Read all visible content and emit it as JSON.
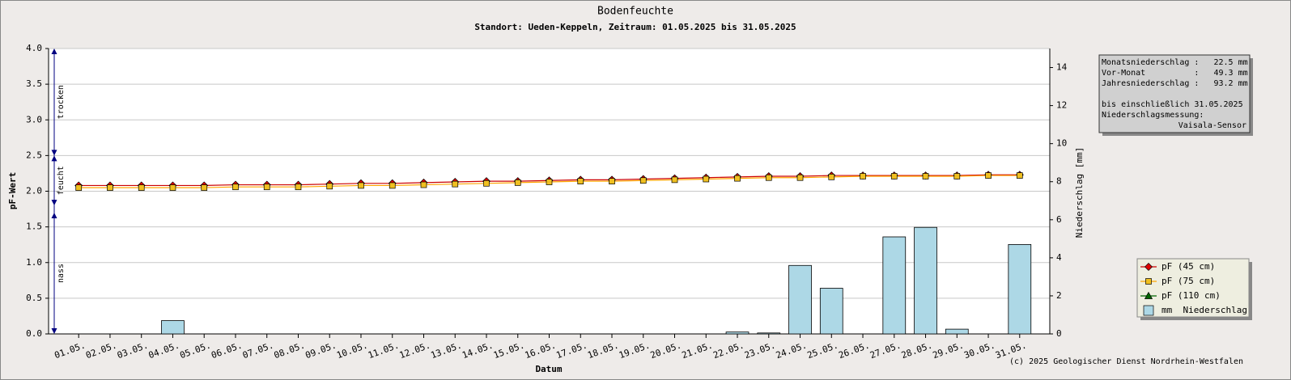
{
  "chart_data": {
    "type": "line_bar",
    "title": "Bodenfeuchte",
    "subtitle": "Standort: Ueden-Keppeln, Zeitraum: 01.05.2025 bis 31.05.2025",
    "xlabel": "Datum",
    "ylabel": "pF-Wert",
    "y2label": "Niederschlag [mm]",
    "categories": [
      "01.05.",
      "02.05.",
      "03.05.",
      "04.05.",
      "05.05.",
      "06.05.",
      "07.05.",
      "08.05.",
      "09.05.",
      "10.05.",
      "11.05.",
      "12.05.",
      "13.05.",
      "14.05.",
      "15.05.",
      "16.05.",
      "17.05.",
      "18.05.",
      "19.05.",
      "20.05.",
      "21.05.",
      "22.05.",
      "23.05.",
      "24.05.",
      "25.05.",
      "26.05.",
      "27.05.",
      "28.05.",
      "29.05.",
      "30.05.",
      "31.05."
    ],
    "series": [
      {
        "name": "pF (45 cm)",
        "kind": "line",
        "marker": "diamond",
        "color": "#cc0000",
        "marker_color": "#e00000",
        "values": [
          2.08,
          2.08,
          2.08,
          2.08,
          2.08,
          2.09,
          2.09,
          2.09,
          2.1,
          2.11,
          2.11,
          2.12,
          2.13,
          2.14,
          2.14,
          2.15,
          2.16,
          2.16,
          2.17,
          2.18,
          2.19,
          2.2,
          2.21,
          2.21,
          2.22,
          2.22,
          2.22,
          2.22,
          2.22,
          2.23,
          2.23
        ]
      },
      {
        "name": "pF (75 cm)",
        "kind": "line",
        "marker": "square",
        "color": "#ffa500",
        "marker_color": "#f0c020",
        "values": [
          2.05,
          2.05,
          2.05,
          2.05,
          2.05,
          2.06,
          2.06,
          2.06,
          2.07,
          2.08,
          2.08,
          2.09,
          2.1,
          2.11,
          2.12,
          2.13,
          2.14,
          2.14,
          2.15,
          2.16,
          2.17,
          2.18,
          2.19,
          2.19,
          2.2,
          2.21,
          2.21,
          2.21,
          2.21,
          2.22,
          2.22
        ]
      },
      {
        "name": "pF (110 cm)",
        "kind": "line",
        "marker": "triangle",
        "color": "#006400",
        "marker_color": "#006400",
        "values": [
          null,
          null,
          null,
          null,
          null,
          null,
          null,
          null,
          null,
          null,
          null,
          null,
          null,
          null,
          null,
          null,
          null,
          null,
          null,
          null,
          null,
          null,
          null,
          null,
          null,
          null,
          null,
          null,
          null,
          null,
          null
        ]
      },
      {
        "name": "mm  Niederschlag",
        "kind": "bar",
        "axis": "y2",
        "color": "#add8e6",
        "values": [
          0,
          0,
          0,
          0.7,
          0,
          0,
          0,
          0,
          0,
          0,
          0,
          0,
          0,
          0,
          0,
          0,
          0,
          0,
          0,
          0,
          0,
          0.1,
          0.05,
          3.6,
          2.4,
          0,
          5.1,
          5.6,
          0.25,
          0,
          4.7
        ]
      }
    ],
    "ylim": [
      0,
      4
    ],
    "yticks": [
      {
        "value": 0,
        "label": "0.0"
      },
      0.5,
      {
        "value": 1,
        "label": "1.0"
      },
      1.5,
      {
        "value": 2,
        "label": "2.0"
      },
      2.5,
      {
        "value": 3,
        "label": "3.0"
      },
      3.5,
      {
        "value": 4,
        "label": "4.0"
      }
    ],
    "y2lim": [
      0,
      15
    ],
    "y2ticks": [
      0,
      2,
      4,
      6,
      8,
      10,
      12,
      14
    ],
    "grid": true,
    "zones": [
      {
        "label": "trocken",
        "range": [
          2.5,
          4.0
        ]
      },
      {
        "label": "feucht",
        "range": [
          1.8,
          2.5
        ]
      },
      {
        "label": "nass",
        "range": [
          0,
          1.7
        ]
      }
    ],
    "info": {
      "lines1": [
        "Monatsniederschlag :   22.5 mm",
        "Vor-Monat          :   49.3 mm",
        "Jahresniederschlag :   93.2 mm"
      ],
      "lines2": [
        "bis einschließlich 31.05.2025",
        "Niederschlagsmessung:"
      ],
      "sensor": "Vaisala-Sensor"
    },
    "footer": "(c) 2025 Geologischer Dienst Nordrhein-Westfalen"
  }
}
